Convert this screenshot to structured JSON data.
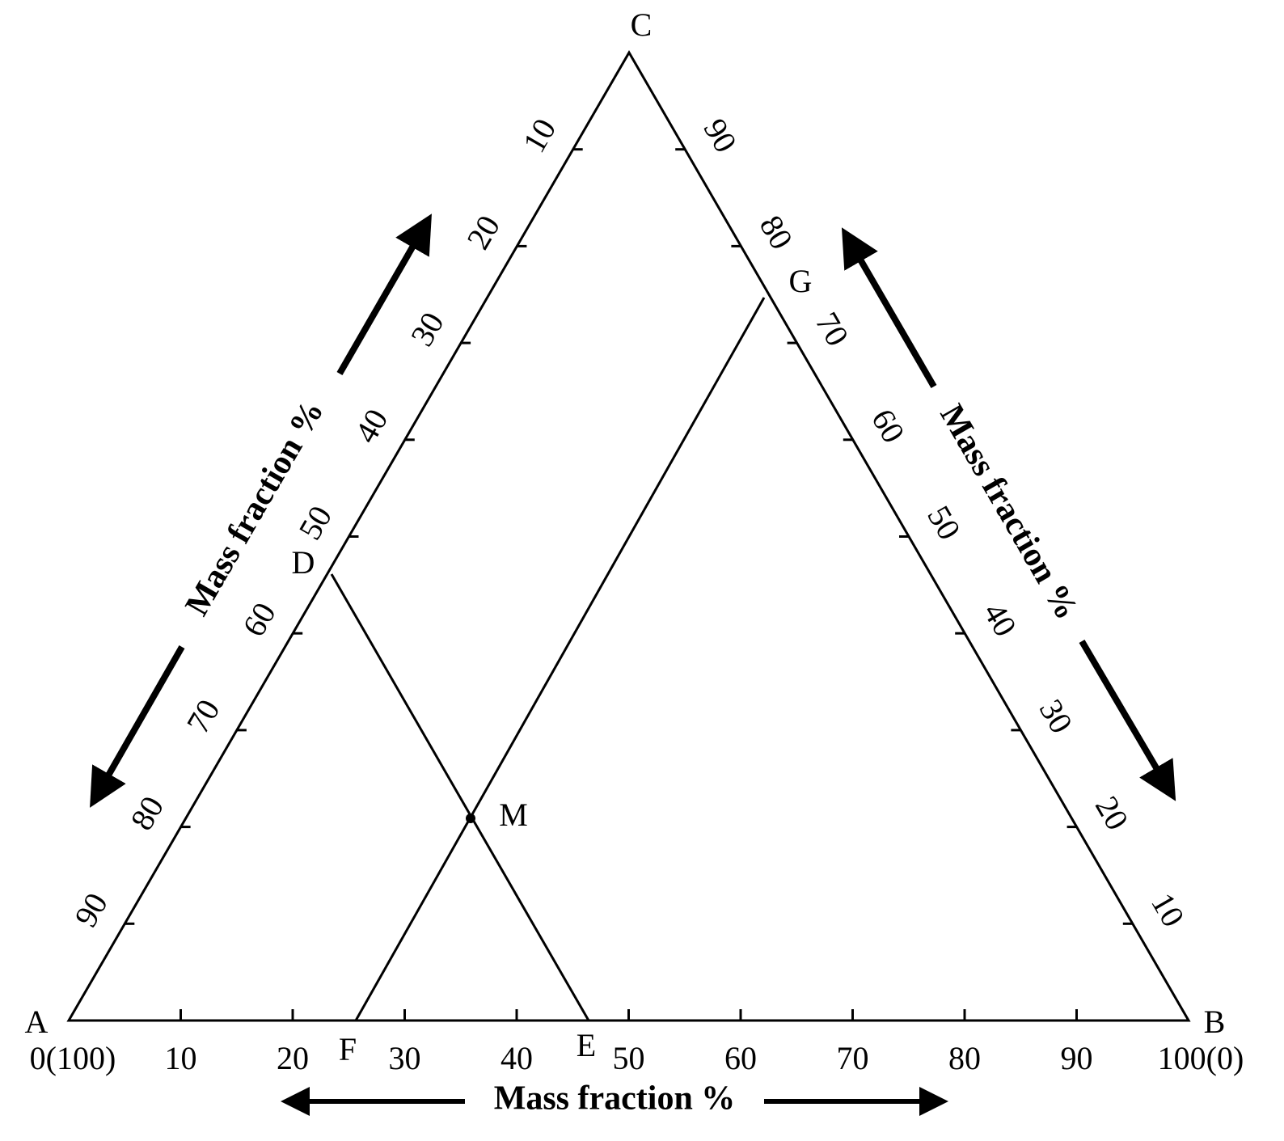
{
  "vertices": [
    "A",
    "B",
    "C"
  ],
  "points": [
    "D",
    "E",
    "F",
    "G",
    "M"
  ],
  "bottom_axis": {
    "ticks": [
      "0(100)",
      "10",
      "20",
      "30",
      "40",
      "50",
      "60",
      "70",
      "80",
      "90",
      "100(0)"
    ],
    "title": "Mass fraction  %"
  },
  "left_axis": {
    "ticks": [
      "90",
      "80",
      "70",
      "60",
      "50",
      "40",
      "30",
      "20",
      "10"
    ],
    "title": "Mass fraction %"
  },
  "right_axis": {
    "ticks": [
      "10",
      "20",
      "30",
      "40",
      "50",
      "60",
      "70",
      "80",
      "90"
    ],
    "title": "Mass fraction %"
  }
}
